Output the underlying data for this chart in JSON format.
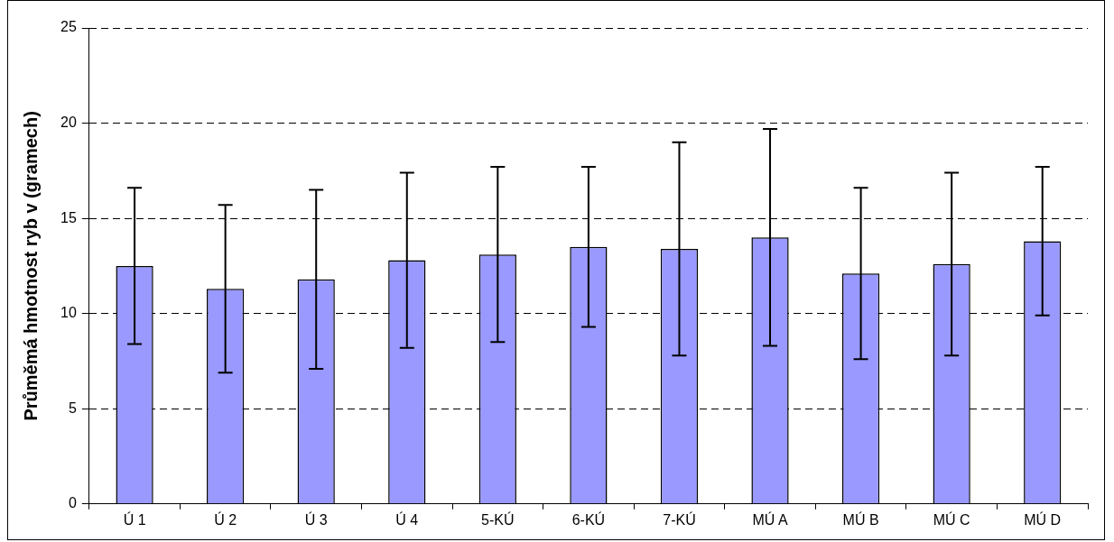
{
  "chart_data": {
    "type": "bar",
    "ylabel": "Průměmá hmotnost ryb v (gramech)",
    "categories": [
      "Ú 1",
      "Ú 2",
      "Ú 3",
      "Ú 4",
      "5-KÚ",
      "6-KÚ",
      "7-KÚ",
      "MÚ A",
      "MÚ B",
      "MÚ C",
      "MÚ D"
    ],
    "values": [
      12.5,
      11.3,
      11.8,
      12.8,
      13.1,
      13.5,
      13.4,
      14.0,
      12.1,
      12.6,
      13.8
    ],
    "errors": [
      4.1,
      4.4,
      4.7,
      4.6,
      4.6,
      4.2,
      5.6,
      5.7,
      4.5,
      4.8,
      3.9
    ],
    "color": "#9999ff",
    "ylim": [
      0,
      25
    ],
    "yticks": [
      0,
      5,
      10,
      15,
      20,
      25
    ],
    "grid": "y",
    "legend": false
  }
}
